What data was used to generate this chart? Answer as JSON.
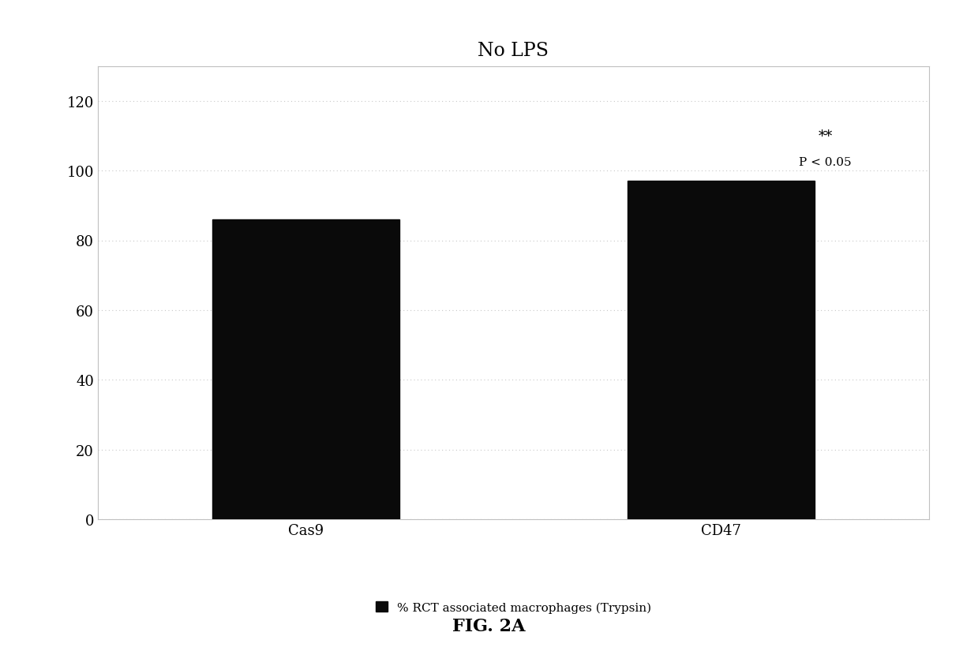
{
  "title": "No LPS",
  "categories": [
    "Cas9",
    "CD47"
  ],
  "values": [
    86,
    97
  ],
  "bar_color": "#0a0a0a",
  "ylim": [
    0,
    130
  ],
  "yticks": [
    0,
    20,
    40,
    60,
    80,
    100,
    120
  ],
  "ylabel": "",
  "xlabel": "",
  "legend_label": "% RCT associated macrophages (Trypsin)",
  "annotation_star": "**",
  "annotation_pval": "P < 0.05",
  "fig_label": "FIG. 2A",
  "background_color": "#ffffff",
  "grid_color": "#c8c8c8",
  "spine_color": "#c0c0c0",
  "title_fontsize": 17,
  "tick_fontsize": 13,
  "legend_fontsize": 11,
  "fig_label_fontsize": 16,
  "bar_positions": [
    1,
    3
  ],
  "bar_width": 0.9,
  "xlim": [
    0,
    4
  ]
}
